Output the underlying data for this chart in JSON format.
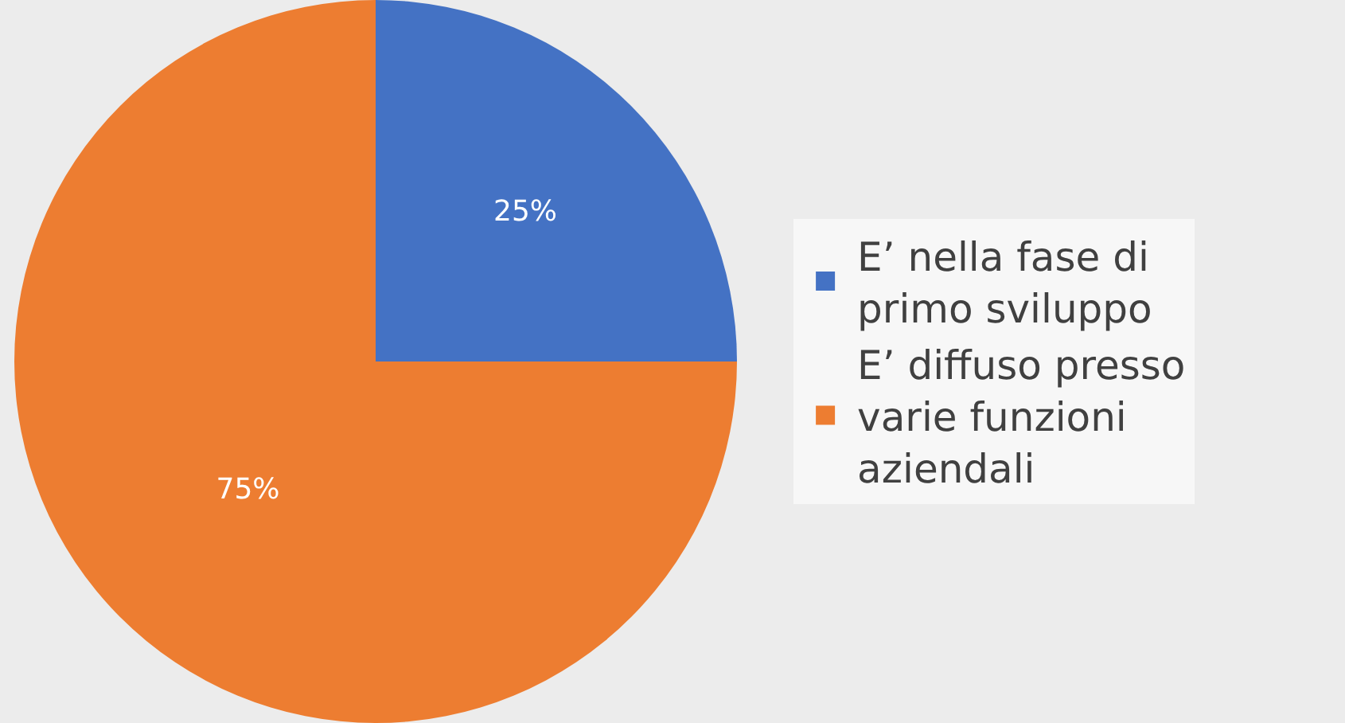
{
  "chart_data": {
    "type": "pie",
    "categories": [
      "E’ nella fase di primo sviluppo",
      "E’ diffuso presso varie funzioni aziendali"
    ],
    "values": [
      25,
      75
    ],
    "colors": [
      "#4472c4",
      "#ed7d31"
    ],
    "value_labels": [
      "25%",
      "75%"
    ],
    "legend": "right"
  }
}
